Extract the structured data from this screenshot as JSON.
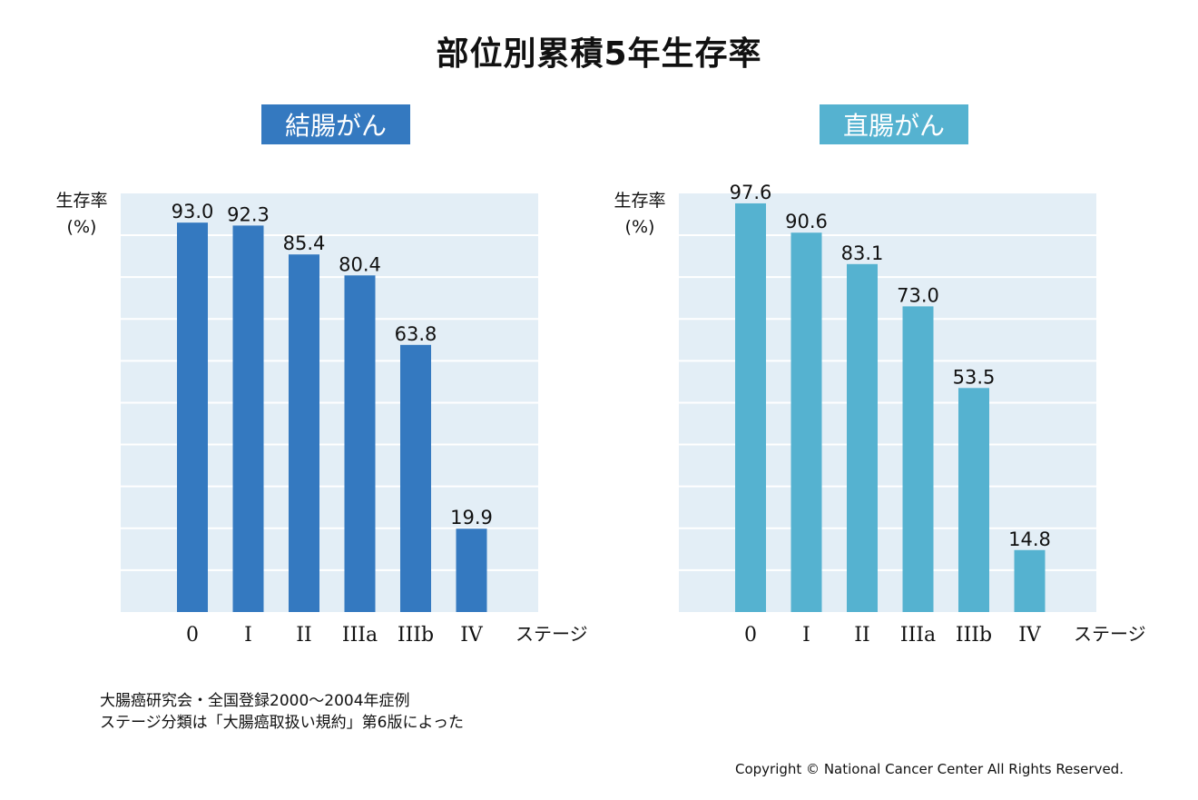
{
  "page_title": "部位別累積5年生存率",
  "chart_data": [
    {
      "type": "bar",
      "title": "結腸がん",
      "ylabel": "生存率\n(%)",
      "ylabel_lines": [
        "生存率",
        "(%)"
      ],
      "xlabel": "ステージ",
      "categories": [
        "0",
        "I",
        "II",
        "IIIa",
        "IIIb",
        "IV"
      ],
      "values": [
        93.0,
        92.3,
        85.4,
        80.4,
        63.8,
        19.9
      ],
      "value_labels": [
        "93.0",
        "92.3",
        "85.4",
        "80.4",
        "63.8",
        "19.9"
      ],
      "ylim": [
        0,
        100
      ],
      "grid": true,
      "bar_color": "#3479c0"
    },
    {
      "type": "bar",
      "title": "直腸がん",
      "ylabel": "生存率\n(%)",
      "ylabel_lines": [
        "生存率",
        "(%)"
      ],
      "xlabel": "ステージ",
      "categories": [
        "0",
        "I",
        "II",
        "IIIa",
        "IIIb",
        "IV"
      ],
      "values": [
        97.6,
        90.6,
        83.1,
        73.0,
        53.5,
        14.8
      ],
      "value_labels": [
        "97.6",
        "90.6",
        "83.1",
        "73.0",
        "53.5",
        "14.8"
      ],
      "ylim": [
        0,
        100
      ],
      "grid": true,
      "bar_color": "#55b2d0"
    }
  ],
  "notes": [
    "大腸癌研究会・全国登録2000〜2004年症例",
    "ステージ分類は「大腸癌取扱い規約」第6版によった"
  ],
  "copyright": "Copyright © National Cancer Center All Rights Reserved."
}
